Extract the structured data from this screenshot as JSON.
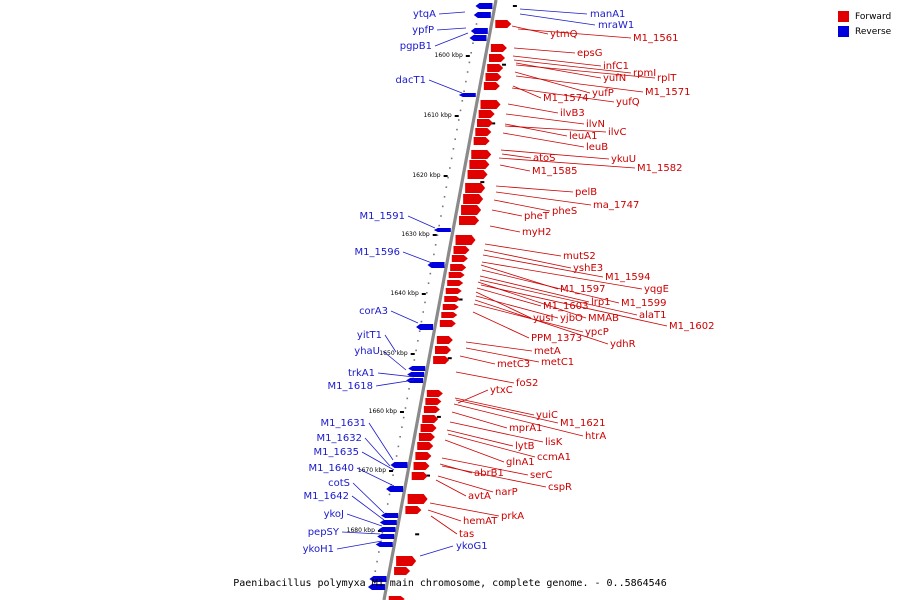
{
  "caption": "Paenibacillus polymyxa M1 main chromosome, complete genome. - 0..5864546",
  "legend": {
    "forward_label": "Forward",
    "reverse_label": "Reverse",
    "forward_color": "#e00000",
    "reverse_color": "#0000dd"
  },
  "colors": {
    "forward_text": "#cc0000",
    "reverse_text": "#1a1acc",
    "backbone": "#8a8a8a"
  },
  "scale_ticks": [
    "1600 kbp",
    "1610 kbp",
    "1620 kbp",
    "1630 kbp",
    "1640 kbp",
    "1650 kbp",
    "1660 kbp",
    "1670 kbp",
    "1680 kbp"
  ],
  "reverse_genes": [
    "ytqA",
    "ypfP",
    "pgpB1",
    "dacT1",
    "M1_1591",
    "M1_1596",
    "corA3",
    "yitT1",
    "yhaU",
    "trkA1",
    "M1_1618",
    "M1_1631",
    "M1_1632",
    "M1_1635",
    "M1_1640",
    "cotS",
    "M1_1642",
    "ykoJ",
    "pepSY",
    "ykoH1",
    "manA1",
    "mraW1",
    "ykoG1"
  ],
  "forward_genes": [
    "ytmQ",
    "M1_1561",
    "epsG",
    "infC1",
    "rpmI",
    "yufN",
    "rplT",
    "yufP",
    "M1_1571",
    "M1_1574",
    "yufQ",
    "ilvB3",
    "ilvN",
    "leuA1",
    "ilvC",
    "leuB",
    "atoS",
    "ykuU",
    "M1_1585",
    "M1_1582",
    "pelB",
    "ma_1747",
    "pheS",
    "pheT",
    "myH2",
    "mutS2",
    "yshE3",
    "M1_1594",
    "M1_1597",
    "yqgE",
    "lrp1",
    "M1_1599",
    "M1_1603",
    "yusI",
    "yjbO",
    "MMAB",
    "alaT1",
    "M1_1602",
    "ypcP",
    "PPM_1373",
    "ydhR",
    "metA",
    "metC3",
    "metC1",
    "foS2",
    "ytxC",
    "yuiC",
    "M1_1621",
    "mprA1",
    "htrA",
    "lisK",
    "lytB",
    "ccmA1",
    "glnA1",
    "serC",
    "abrB1",
    "cspR",
    "narP",
    "avtA",
    "prkA",
    "hemAT",
    "tas"
  ]
}
